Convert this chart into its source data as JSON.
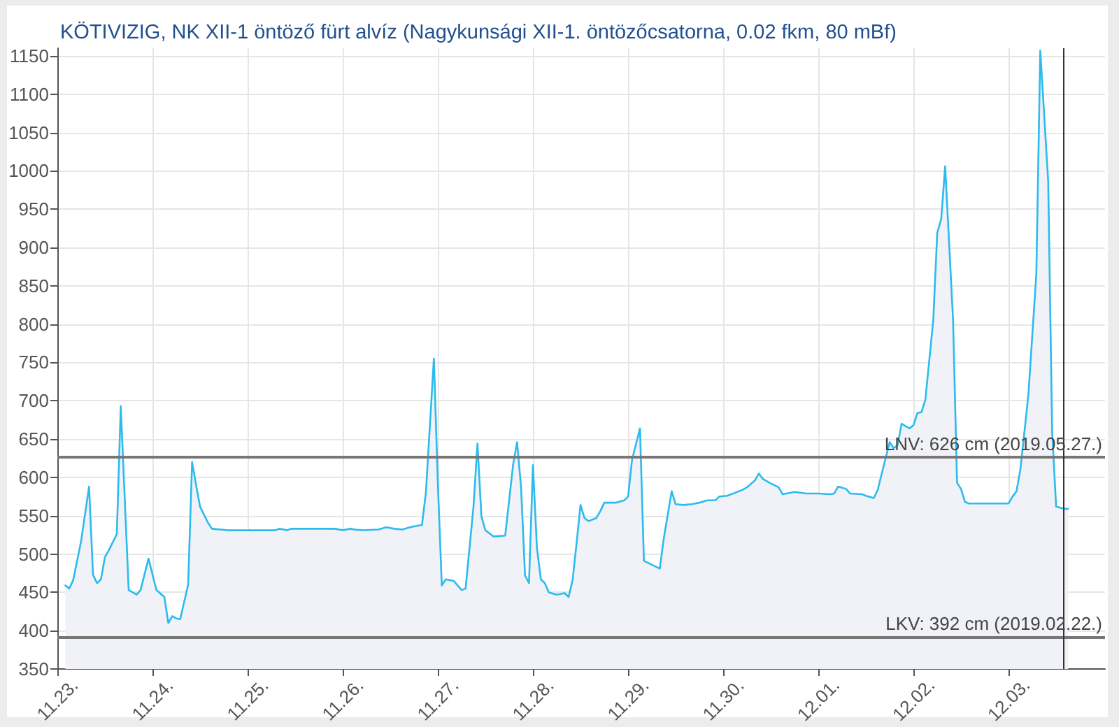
{
  "chart_data": {
    "type": "area",
    "title": "KÖTIVIZIG, NK XII-1 öntöző fürt alvíz (Nagykunsági XII-1. öntözőcsatorna, 0.02 fkm, 80 mBf)",
    "x": [
      "--11-23T02:00",
      "--11-23T03:00",
      "--11-23T04:00",
      "--11-23T06:00",
      "--11-23T08:00",
      "--11-23T09:00",
      "--11-23T10:00",
      "--11-23T11:00",
      "--11-23T12:00",
      "--11-23T13:00",
      "--11-23T15:00",
      "--11-23T16:00",
      "--11-23T18:00",
      "--11-23T20:00",
      "--11-23T21:00",
      "--11-23T23:00",
      "--11-24T01:00",
      "--11-24T03:00",
      "--11-24T04:00",
      "--11-24T05:00",
      "--11-24T06:00",
      "--11-24T07:00",
      "--11-24T09:00",
      "--11-24T10:00",
      "--11-24T11:00",
      "--11-24T12:00",
      "--11-24T14:00",
      "--11-24T15:00",
      "--11-24T19:00",
      "--11-25T07:00",
      "--11-25T08:00",
      "--11-25T10:00",
      "--11-25T11:00",
      "--11-25T12:00",
      "--11-25T22:00",
      "--11-26T00:00",
      "--11-26T02:00",
      "--11-26T03:00",
      "--11-26T05:00",
      "--11-26T09:00",
      "--11-26T11:00",
      "--11-26T13:00",
      "--11-26T15:00",
      "--11-26T17:00",
      "--11-26T18:00",
      "--11-26T20:00",
      "--11-26T21:00",
      "--11-26T23:00",
      "--11-27T00:00",
      "--11-27T01:00",
      "--11-27T02:00",
      "--11-27T04:00",
      "--11-27T06:00",
      "--11-27T07:00",
      "--11-27T09:00",
      "--11-27T10:00",
      "--11-27T11:00",
      "--11-27T12:00",
      "--11-27T14:00",
      "--11-27T17:00",
      "--11-27T19:00",
      "--11-27T20:00",
      "--11-27T21:00",
      "--11-27T22:00",
      "--11-27T23:00",
      "--11-28T00:00",
      "--11-28T01:00",
      "--11-28T02:00",
      "--11-28T03:00",
      "--11-28T04:00",
      "--11-28T06:00",
      "--11-28T08:00",
      "--11-28T09:00",
      "--11-28T10:00",
      "--11-28T11:00",
      "--11-28T12:00",
      "--11-28T13:00",
      "--11-28T14:00",
      "--11-28T16:00",
      "--11-28T17:00",
      "--11-28T18:00",
      "--11-28T21:00",
      "--11-28T23:00",
      "--11-29T00:00",
      "--11-29T01:00",
      "--11-29T03:00",
      "--11-29T04:00",
      "--11-29T08:00",
      "--11-29T09:00",
      "--11-29T11:00",
      "--11-29T12:00",
      "--11-29T14:00",
      "--11-29T16:00",
      "--11-29T18:00",
      "--11-29T20:00",
      "--11-29T22:00",
      "--11-29T23:00",
      "--11-30T01:00",
      "--11-30T03:00",
      "--11-30T05:00",
      "--11-30T06:00",
      "--11-30T08:00",
      "--11-30T09:00",
      "--11-30T10:00",
      "--11-30T12:00",
      "--11-30T14:00",
      "--11-30T15:00",
      "--11-30T16:00",
      "--11-30T18:00",
      "--11-30T21:00",
      "--12-01T00:00",
      "--12-01T03:00",
      "--12-01T04:00",
      "--12-01T05:00",
      "--12-01T07:00",
      "--12-01T08:00",
      "--12-01T11:00",
      "--12-01T12:00",
      "--12-01T14:00",
      "--12-01T15:00",
      "--12-01T16:00",
      "--12-01T18:00",
      "--12-01T19:00",
      "--12-01T20:00",
      "--12-01T21:00",
      "--12-01T23:00",
      "--12-02T00:00",
      "--12-02T01:00",
      "--12-02T02:00",
      "--12-02T03:00",
      "--12-02T05:00",
      "--12-02T06:00",
      "--12-02T07:00",
      "--12-02T08:00",
      "--12-02T10:00",
      "--12-02T11:00",
      "--12-02T12:00",
      "--12-02T13:00",
      "--12-02T14:00",
      "--12-02T18:00",
      "--12-03T00:00",
      "--12-03T01:00",
      "--12-03T02:00",
      "--12-03T03:00",
      "--12-03T05:00",
      "--12-03T07:00",
      "--12-03T08:00",
      "--12-03T10:00",
      "--12-03T11:00",
      "--12-03T12:00",
      "--12-03T14:00",
      "--12-03T15:00"
    ],
    "series": [
      {
        "color": "#2bbbee",
        "values": [
          459,
          455,
          466,
          517,
          588,
          473,
          462,
          467,
          496,
          505,
          526,
          693,
          453,
          447,
          453,
          494,
          453,
          444,
          410,
          419,
          416,
          415,
          460,
          620,
          590,
          562,
          541,
          533,
          531,
          531,
          533,
          531,
          533,
          533,
          533,
          531,
          533,
          532,
          531,
          532,
          535,
          533,
          532,
          535,
          536,
          538,
          581,
          755,
          593,
          459,
          467,
          465,
          453,
          455,
          562,
          644,
          549,
          531,
          523,
          524,
          617,
          646,
          587,
          472,
          462,
          616,
          508,
          467,
          462,
          450,
          447,
          449,
          444,
          466,
          514,
          564,
          547,
          543,
          547,
          556,
          567,
          567,
          570,
          575,
          623,
          664,
          491,
          481,
          520,
          582,
          565,
          564,
          565,
          567,
          570,
          570,
          575,
          576,
          580,
          584,
          587,
          596,
          605,
          598,
          592,
          587,
          578,
          579,
          581,
          579,
          579,
          578,
          579,
          588,
          585,
          579,
          578,
          576,
          573,
          584,
          605,
          646,
          638,
          642,
          670,
          664,
          668,
          684,
          685,
          701,
          805,
          919,
          937,
          1006,
          805,
          593,
          585,
          568,
          566,
          566,
          566,
          575,
          582,
          611,
          708,
          865,
          1157,
          986,
          659,
          562,
          559,
          559
        ]
      }
    ],
    "xlim": [
      "--11-23",
      "--12-04T00:20"
    ],
    "xticks": [
      {
        "value": "--11-23",
        "label": "11.23."
      },
      {
        "value": "--11-24",
        "label": "11.24."
      },
      {
        "value": "--11-25",
        "label": "11.25."
      },
      {
        "value": "--11-26",
        "label": "11.26."
      },
      {
        "value": "--11-27",
        "label": "11.27."
      },
      {
        "value": "--11-28",
        "label": "11.28."
      },
      {
        "value": "--11-29",
        "label": "11.29."
      },
      {
        "value": "--11-30",
        "label": "11.30."
      },
      {
        "value": "--12-01",
        "label": "12.01."
      },
      {
        "value": "--12-02",
        "label": "12.02."
      },
      {
        "value": "--12-03",
        "label": "12.03."
      }
    ],
    "ylim": [
      350,
      1160
    ],
    "yticks": [
      350,
      400,
      450,
      500,
      550,
      600,
      650,
      700,
      750,
      800,
      850,
      900,
      950,
      1000,
      1050,
      1100,
      1150
    ],
    "grid": true,
    "marker": "none",
    "ref_lines": [
      {
        "axis": "y",
        "value": 626,
        "label": "LNV: 626 cm (2019.05.27.)",
        "color": "#777777"
      },
      {
        "axis": "y",
        "value": 392,
        "label": "LKV: 392 cm (2019.02.22.)",
        "color": "#777777"
      },
      {
        "axis": "x",
        "value": "--12-03T14:00",
        "color": "#333333"
      }
    ]
  }
}
